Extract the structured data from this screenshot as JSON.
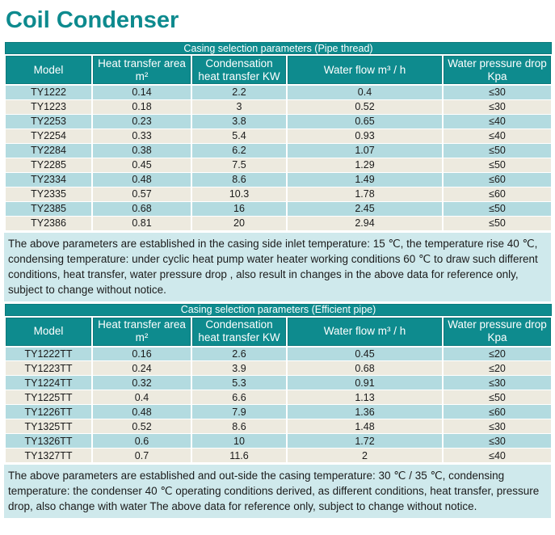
{
  "page": {
    "title": "Coil Condenser"
  },
  "colors": {
    "accent_teal": "#0e8b8e",
    "title_teal": "#0d8a8e",
    "row_blue": "#b3dbe0",
    "row_beige": "#edeadf",
    "note_background": "#cfe9ec",
    "header_text": "#ffffff",
    "body_text": "#1b1b1b"
  },
  "tables": [
    {
      "caption": "Casing selection parameters (Pipe thread)",
      "columns": [
        [
          "Model"
        ],
        [
          "Heat transfer area",
          "m²"
        ],
        [
          "Condensation",
          "heat transfer  KW"
        ],
        [
          "Water flow   m³ / h"
        ],
        [
          "Water pressure drop",
          "Kpa"
        ]
      ],
      "rows": [
        [
          "TY1222",
          "0.14",
          "2.2",
          "0.4",
          "≤30"
        ],
        [
          "TY1223",
          "0.18",
          "3",
          "0.52",
          "≤30"
        ],
        [
          "TY2253",
          "0.23",
          "3.8",
          "0.65",
          "≤40"
        ],
        [
          "TY2254",
          "0.33",
          "5.4",
          "0.93",
          "≤40"
        ],
        [
          "TY2284",
          "0.38",
          "6.2",
          "1.07",
          "≤50"
        ],
        [
          "TY2285",
          "0.45",
          "7.5",
          "1.29",
          "≤50"
        ],
        [
          "TY2334",
          "0.48",
          "8.6",
          "1.49",
          "≤60"
        ],
        [
          "TY2335",
          "0.57",
          "10.3",
          "1.78",
          "≤60"
        ],
        [
          "TY2385",
          "0.68",
          "16",
          "2.45",
          "≤50"
        ],
        [
          "TY2386",
          "0.81",
          "20",
          "2.94",
          "≤50"
        ]
      ],
      "note": "The above parameters are established in the casing side inlet temperature: 15 ℃, the temperature rise 40 ℃, condensing temperature: under cyclic heat pump water heater working conditions 60 ℃ to draw such different conditions, heat transfer, water pressure drop , also result in changes in the above data for reference only, subject to change without notice."
    },
    {
      "caption": "Casing selection parameters (Efficient pipe)",
      "columns": [
        [
          "Model"
        ],
        [
          "Heat transfer area",
          "m²"
        ],
        [
          "Condensation",
          "heat transfer KW"
        ],
        [
          "Water flow m³ / h"
        ],
        [
          "Water pressure drop",
          "Kpa"
        ]
      ],
      "rows": [
        [
          "TY1222TT",
          "0.16",
          "2.6",
          "0.45",
          "≤20"
        ],
        [
          "TY1223TT",
          "0.24",
          "3.9",
          "0.68",
          "≤20"
        ],
        [
          "TY1224TT",
          "0.32",
          "5.3",
          "0.91",
          "≤30"
        ],
        [
          "TY1225TT",
          "0.4",
          "6.6",
          "1.13",
          "≤50"
        ],
        [
          "TY1226TT",
          "0.48",
          "7.9",
          "1.36",
          "≤60"
        ],
        [
          "TY1325TT",
          "0.52",
          "8.6",
          "1.48",
          "≤30"
        ],
        [
          "TY1326TT",
          "0.6",
          "10",
          "1.72",
          "≤30"
        ],
        [
          "TY1327TT",
          "0.7",
          "11.6",
          "2",
          "≤40"
        ]
      ],
      "note": "The above parameters are established and out-side the casing temperature: 30 ℃ / 35 ℃, condensing temperature: the condenser 40 ℃ operating conditions derived, as different conditions, heat transfer, pressure drop, also change with water The above data for reference only, subject to change without notice."
    }
  ]
}
